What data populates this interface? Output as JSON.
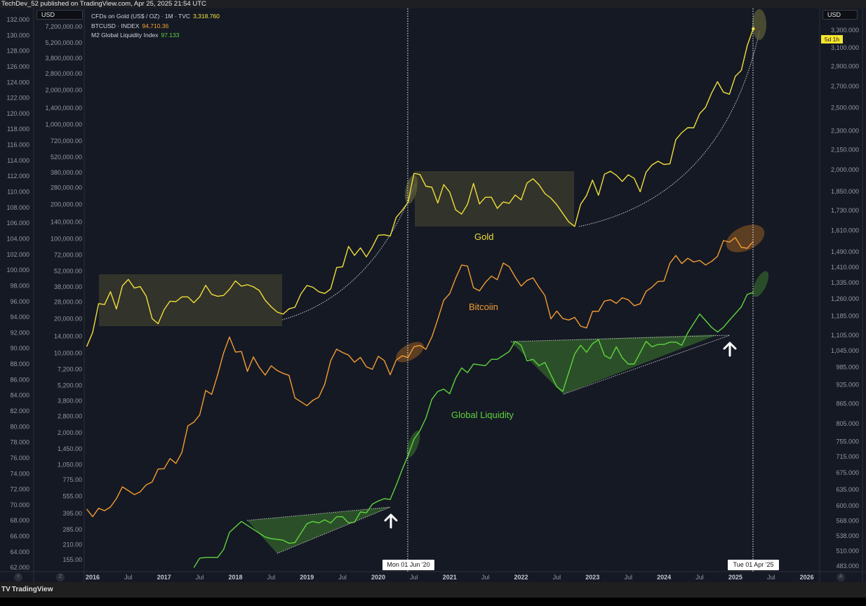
{
  "header": {
    "published": "TechDev_52 published on TradingView.com, Apr 25, 2025 21:54 UTC"
  },
  "footer": {
    "brand": "TradingView",
    "logo_icon": "tradingview-logo-icon"
  },
  "currency_left": "USD",
  "currency_right": "USD",
  "countdown_badge": "5d 1h",
  "scale_buttons": {
    "left1": "Y",
    "left2": "Z",
    "right": "A"
  },
  "legend": [
    {
      "label": "CFDs on Gold (US$ / OZ) · 1M · TVC",
      "value": "3,318.760",
      "color": "#f4e53c"
    },
    {
      "label": "BTCUSD · INDEX",
      "value": "94,710.36",
      "color": "#f5a233"
    },
    {
      "label": "M2 Global Liquidity Index",
      "value": "97.133",
      "color": "#5fd53b"
    }
  ],
  "crosshair_labels": [
    "Mon 01 Jun '20",
    "Tue 01 Apr '25"
  ],
  "annotations": {
    "gold": "Gold",
    "bitcoin": "Bitcoiin",
    "liquidity": "Global Liquidity"
  },
  "colors": {
    "background": "#151924",
    "gold": "#f0df3a",
    "btc": "#f39c33",
    "m2": "#5ed33c",
    "box": "#3a3a2c",
    "triangle": "#2f5a2a"
  },
  "chart_data": {
    "type": "line",
    "title": "",
    "x_ticks": [
      "2016",
      "Jul",
      "2017",
      "Jul",
      "2018",
      "Jul",
      "2019",
      "Jul",
      "2020",
      "Jul",
      "2021",
      "Jul",
      "2022",
      "Jul",
      "2023",
      "Jul",
      "2024",
      "Jul",
      "2025",
      "Jul",
      "2026"
    ],
    "y_axes": {
      "m2": {
        "position": "left-outer",
        "scale": "linear",
        "range": [
          62,
          132
        ],
        "ticks": [
          "132.000",
          "130.000",
          "128.000",
          "126.000",
          "124.000",
          "122.000",
          "120.000",
          "118.000",
          "116.000",
          "114.000",
          "112.000",
          "110.000",
          "108.000",
          "106.000",
          "104.000",
          "102.000",
          "100.000",
          "98.000",
          "96.000",
          "94.000",
          "92.000",
          "90.000",
          "88.000",
          "86.000",
          "84.000",
          "82.000",
          "80.000",
          "78.000",
          "76.000",
          "74.000",
          "72.000",
          "70.000",
          "68.000",
          "66.000",
          "64.000",
          "62.000"
        ]
      },
      "btc": {
        "position": "left-inner",
        "scale": "log",
        "range": [
          155,
          7200000
        ],
        "ticks": [
          "7,200,000.00",
          "5,200,000.00",
          "3,800,000.00",
          "2,800,000.00",
          "2,000,000.00",
          "1,400,000.00",
          "1,000,000.00",
          "720,000.00",
          "520,000.00",
          "380,000.00",
          "280,000.00",
          "200,000.00",
          "140,000.00",
          "100,000.00",
          "72,000.00",
          "52,000.00",
          "38,000.00",
          "28,000.00",
          "20,000.00",
          "14,000.00",
          "10,000.00",
          "7,200.00",
          "5,200.00",
          "3,800.00",
          "2,800.00",
          "2,000.00",
          "1,450.00",
          "1,050.00",
          "775.00",
          "555.00",
          "395.00",
          "285.00",
          "210.00",
          "155.00"
        ]
      },
      "gold": {
        "position": "right",
        "scale": "log",
        "range": [
          483,
          3300
        ],
        "ticks": [
          "3,300.000",
          "3,100.000",
          "2,900.000",
          "2,700.000",
          "2,500.000",
          "2,300.000",
          "2,150.000",
          "2,000.000",
          "1,850.000",
          "1,730.000",
          "1,610.000",
          "1,490.000",
          "1,410.000",
          "1,335.000",
          "1,260.000",
          "1,185.000",
          "1,105.000",
          "1,045.000",
          "985.000",
          "925.000",
          "865.000",
          "805.000",
          "755.000",
          "715.000",
          "675.000",
          "635.000",
          "600.000",
          "568.000",
          "538.000",
          "510.000",
          "483.000"
        ]
      }
    },
    "grid": false,
    "x": [
      "2015-12",
      "2016-01",
      "2016-02",
      "2016-03",
      "2016-04",
      "2016-05",
      "2016-06",
      "2016-07",
      "2016-08",
      "2016-09",
      "2016-10",
      "2016-11",
      "2016-12",
      "2017-01",
      "2017-02",
      "2017-03",
      "2017-04",
      "2017-05",
      "2017-06",
      "2017-07",
      "2017-08",
      "2017-09",
      "2017-10",
      "2017-11",
      "2017-12",
      "2018-01",
      "2018-02",
      "2018-03",
      "2018-04",
      "2018-05",
      "2018-06",
      "2018-07",
      "2018-08",
      "2018-09",
      "2018-10",
      "2018-11",
      "2018-12",
      "2019-01",
      "2019-02",
      "2019-03",
      "2019-04",
      "2019-05",
      "2019-06",
      "2019-07",
      "2019-08",
      "2019-09",
      "2019-10",
      "2019-11",
      "2019-12",
      "2020-01",
      "2020-02",
      "2020-03",
      "2020-04",
      "2020-05",
      "2020-06",
      "2020-07",
      "2020-08",
      "2020-09",
      "2020-10",
      "2020-11",
      "2020-12",
      "2021-01",
      "2021-02",
      "2021-03",
      "2021-04",
      "2021-05",
      "2021-06",
      "2021-07",
      "2021-08",
      "2021-09",
      "2021-10",
      "2021-11",
      "2021-12",
      "2022-01",
      "2022-02",
      "2022-03",
      "2022-04",
      "2022-05",
      "2022-06",
      "2022-07",
      "2022-08",
      "2022-09",
      "2022-10",
      "2022-11",
      "2022-12",
      "2023-01",
      "2023-02",
      "2023-03",
      "2023-04",
      "2023-05",
      "2023-06",
      "2023-07",
      "2023-08",
      "2023-09",
      "2023-10",
      "2023-11",
      "2023-12",
      "2024-01",
      "2024-02",
      "2024-03",
      "2024-04",
      "2024-05",
      "2024-06",
      "2024-07",
      "2024-08",
      "2024-09",
      "2024-10",
      "2024-11",
      "2024-12",
      "2025-01",
      "2025-02",
      "2025-03",
      "2025-04"
    ],
    "series": [
      {
        "name": "CFDs on Gold (US$ / OZ) · 1M · TVC",
        "axis": "gold",
        "color": "#f0df3a",
        "values": [
          1061,
          1116,
          1238,
          1234,
          1292,
          1214,
          1320,
          1350,
          1309,
          1316,
          1272,
          1173,
          1152,
          1211,
          1249,
          1247,
          1268,
          1268,
          1242,
          1269,
          1322,
          1280,
          1271,
          1275,
          1303,
          1343,
          1318,
          1325,
          1315,
          1298,
          1253,
          1224,
          1201,
          1192,
          1215,
          1222,
          1282,
          1321,
          1313,
          1292,
          1284,
          1305,
          1409,
          1413,
          1520,
          1472,
          1512,
          1464,
          1517,
          1582,
          1585,
          1577,
          1686,
          1730,
          1780,
          1975,
          1967,
          1886,
          1879,
          1776,
          1897,
          1847,
          1733,
          1707,
          1768,
          1905,
          1770,
          1813,
          1813,
          1742,
          1783,
          1774,
          1828,
          1796,
          1908,
          1937,
          1896,
          1837,
          1807,
          1765,
          1711,
          1660,
          1633,
          1768,
          1824,
          1928,
          1826,
          1969,
          1990,
          1962,
          1919,
          1965,
          1940,
          1849,
          1983,
          2036,
          2063,
          2039,
          2044,
          2229,
          2286,
          2327,
          2326,
          2447,
          2503,
          2634,
          2744,
          2643,
          2624,
          2798,
          2857,
          3124,
          3318.76
        ]
      },
      {
        "name": "BTCUSD · INDEX",
        "axis": "btc",
        "color": "#f39c33",
        "values": [
          430,
          369,
          437,
          416,
          448,
          531,
          673,
          624,
          575,
          609,
          701,
          742,
          964,
          970,
          1190,
          1080,
          1348,
          2300,
          2480,
          2875,
          4700,
          4340,
          6450,
          10000,
          13800,
          10200,
          10300,
          6900,
          9240,
          7500,
          6400,
          7730,
          7030,
          6630,
          6370,
          4040,
          3740,
          3460,
          3850,
          4100,
          5320,
          8560,
          10800,
          10100,
          9600,
          8300,
          9150,
          7570,
          7200,
          9350,
          8600,
          6440,
          8660,
          9450,
          9140,
          11350,
          11660,
          10780,
          13800,
          19700,
          29000,
          33100,
          45200,
          58900,
          57700,
          37300,
          35000,
          41500,
          47100,
          43800,
          61300,
          57000,
          46300,
          38500,
          43200,
          45500,
          37700,
          31800,
          19900,
          23300,
          20050,
          19430,
          20490,
          17170,
          16550,
          23130,
          23150,
          28480,
          29250,
          27220,
          30480,
          29230,
          25930,
          26970,
          34640,
          37720,
          42270,
          42580,
          61130,
          71330,
          60640,
          67490,
          62680,
          64620,
          58970,
          63330,
          70220,
          96450,
          93430,
          102400,
          84370,
          82550,
          94710.36
        ]
      },
      {
        "name": "M2 Global Liquidity Index",
        "axis": "m2",
        "color": "#5ed33c",
        "x": [
          "2017-06",
          "2017-07",
          "2017-08",
          "2017-10",
          "2017-11",
          "2017-12",
          "2018-01",
          "2018-02",
          "2018-06",
          "2018-07",
          "2018-09",
          "2018-10",
          "2018-11",
          "2019-01",
          "2019-02",
          "2019-03",
          "2019-04",
          "2019-05",
          "2019-06",
          "2019-07",
          "2019-08",
          "2019-09",
          "2019-10",
          "2019-11",
          "2019-12",
          "2020-01",
          "2020-02",
          "2020-03",
          "2020-04",
          "2020-05",
          "2020-06",
          "2020-07",
          "2020-08",
          "2020-09",
          "2020-10",
          "2020-11",
          "2020-12",
          "2021-01",
          "2021-02",
          "2021-03",
          "2021-04",
          "2021-05",
          "2021-07",
          "2021-08",
          "2021-09",
          "2021-11",
          "2021-12",
          "2022-01",
          "2022-02",
          "2022-03",
          "2022-04",
          "2022-05",
          "2022-07",
          "2022-08",
          "2022-10",
          "2022-11",
          "2022-12",
          "2023-01",
          "2023-02",
          "2023-03",
          "2023-04",
          "2023-05",
          "2023-06",
          "2023-07",
          "2023-08",
          "2023-10",
          "2023-11",
          "2023-12",
          "2024-01",
          "2024-02",
          "2024-03",
          "2024-04",
          "2024-05",
          "2024-07",
          "2024-09",
          "2024-10",
          "2024-11",
          "2024-12",
          "2025-02",
          "2025-03",
          "2025-04"
        ],
        "values": [
          62,
          63.2,
          63.3,
          63.3,
          64.3,
          66.5,
          67.2,
          67.9,
          65.9,
          65.7,
          65.5,
          65.1,
          65.2,
          67.6,
          67.9,
          67.7,
          68.1,
          67.7,
          68.5,
          68.5,
          67.7,
          67.8,
          69.1,
          69.0,
          70.1,
          70.5,
          70.8,
          70.7,
          72.5,
          74.5,
          76.3,
          78.4,
          79.5,
          81.1,
          83.5,
          84.5,
          84.8,
          84.2,
          86.2,
          87.5,
          86.9,
          88.0,
          87.8,
          88.6,
          88.6,
          89.6,
          90.9,
          90.4,
          88.4,
          88.6,
          87.8,
          88.2,
          85.1,
          84.5,
          89.3,
          90.4,
          89.5,
          90.6,
          91.1,
          89.1,
          88.7,
          90.2,
          88.8,
          88.0,
          88.0,
          90.9,
          90.2,
          90.5,
          90.5,
          90.8,
          90.8,
          90.4,
          92.0,
          94.4,
          92.7,
          92.1,
          92.7,
          93.6,
          95.3,
          96.9,
          97.133
        ]
      }
    ]
  }
}
